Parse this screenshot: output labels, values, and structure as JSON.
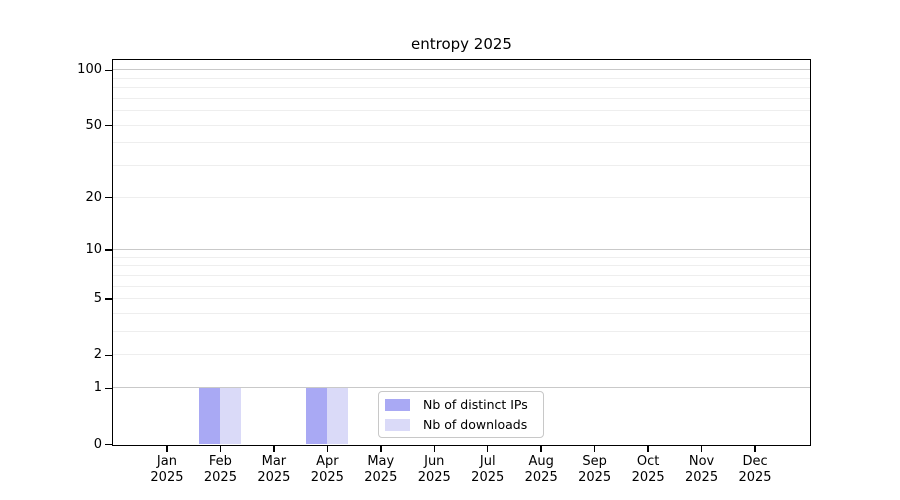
{
  "chart_data": {
    "type": "bar",
    "title": "entropy 2025",
    "x_categories": [
      "Jan\n2025",
      "Feb\n2025",
      "Mar\n2025",
      "Apr\n2025",
      "May\n2025",
      "Jun\n2025",
      "Jul\n2025",
      "Aug\n2025",
      "Sep\n2025",
      "Oct\n2025",
      "Nov\n2025",
      "Dec\n2025"
    ],
    "series": [
      {
        "name": "Nb of distinct IPs",
        "color": "#a9a9f4",
        "values": [
          0,
          1,
          0,
          1,
          0,
          0,
          0,
          0,
          0,
          0,
          0,
          0
        ]
      },
      {
        "name": "Nb of downloads",
        "color": "#dadaf8",
        "values": [
          0,
          1,
          0,
          1,
          0,
          0,
          0,
          0,
          0,
          0,
          0,
          0
        ]
      }
    ],
    "y_scale": "log1p",
    "ylim": [
      0,
      113
    ],
    "y_ticks_labeled": [
      0,
      1,
      2,
      5,
      10,
      20,
      50,
      100
    ],
    "y_grid_major": [
      1,
      10,
      100
    ],
    "y_grid_minor": [
      2,
      3,
      4,
      5,
      6,
      7,
      8,
      9,
      20,
      30,
      40,
      50,
      60,
      70,
      80,
      90
    ],
    "grid": "on",
    "legend_position": "lower-center-inside",
    "colors": {
      "frame": "#000000",
      "grid_major": "rgba(0,0,0,0.21)",
      "grid_minor": "rgba(0,0,0,0.065)",
      "text": "#000000",
      "legend_border": "#c8c8c8",
      "background": "#ffffff"
    }
  }
}
